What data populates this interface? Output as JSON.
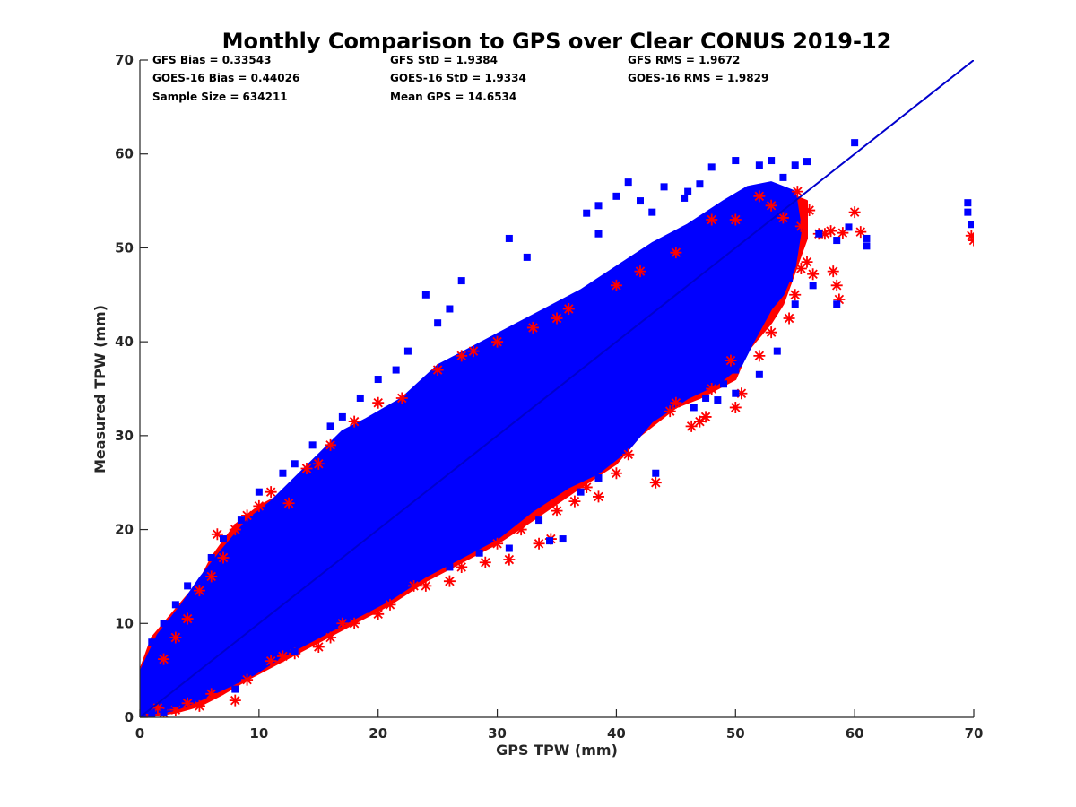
{
  "chart_data": {
    "type": "scatter",
    "title": "Monthly Comparison to GPS over Clear CONUS 2019-12",
    "xlabel": "GPS TPW (mm)",
    "ylabel": "Measured TPW (mm)",
    "xlim": [
      0,
      70
    ],
    "ylim": [
      0,
      70
    ],
    "xticks": [
      "0",
      "10",
      "20",
      "30",
      "40",
      "50",
      "60",
      "70"
    ],
    "yticks": [
      "0",
      "10",
      "20",
      "30",
      "40",
      "50",
      "60",
      "70"
    ],
    "grid": false,
    "series": [
      {
        "name": "GFS",
        "marker": "asterisk",
        "color": "#ff0000"
      },
      {
        "name": "GOES-16",
        "marker": "square",
        "color": "#0000ff"
      }
    ],
    "reference_line": {
      "name": "1:1 line",
      "x": [
        0,
        70
      ],
      "y": [
        0,
        70
      ],
      "color": "#0000cc"
    },
    "stats": [
      [
        "GFS Bias = 0.33543",
        "GFS StD = 1.9384",
        "GFS RMS = 1.9672"
      ],
      [
        "GOES-16 Bias = 0.44026",
        "GOES-16 StD = 1.9334",
        "GOES-16 RMS = 1.9829"
      ],
      [
        "Sample Size = 634211",
        "Mean GPS = 14.6534"
      ]
    ],
    "gfs_outliers": [
      [
        57,
        51.5
      ],
      [
        58,
        51.8
      ],
      [
        59,
        51.6
      ],
      [
        60,
        53.8
      ],
      [
        60.5,
        51.7
      ],
      [
        58.2,
        47.5
      ],
      [
        58.5,
        46
      ],
      [
        58.7,
        44.5
      ],
      [
        69.8,
        51.3
      ],
      [
        70,
        50.8
      ],
      [
        56,
        48.5
      ],
      [
        55,
        45
      ],
      [
        54.5,
        42.5
      ],
      [
        53,
        41
      ],
      [
        52,
        38.5
      ],
      [
        50.5,
        34.5
      ],
      [
        50,
        33
      ],
      [
        47.5,
        32
      ],
      [
        47,
        31.5
      ],
      [
        46.3,
        31
      ],
      [
        43.3,
        25
      ],
      [
        38.5,
        23.5
      ],
      [
        36.5,
        23
      ],
      [
        34.5,
        19
      ],
      [
        33.5,
        18.5
      ],
      [
        31,
        16.8
      ],
      [
        29,
        16.5
      ],
      [
        26,
        14.5
      ],
      [
        23,
        14
      ],
      [
        20,
        11
      ],
      [
        17,
        10
      ],
      [
        15,
        7.5
      ],
      [
        12,
        6.5
      ],
      [
        8,
        1.8
      ],
      [
        5,
        1.2
      ],
      [
        2,
        0.4
      ],
      [
        1,
        0.3
      ],
      [
        5,
        13.5
      ],
      [
        7,
        17
      ],
      [
        8,
        20
      ],
      [
        9,
        21.5
      ],
      [
        10,
        22.5
      ],
      [
        12.5,
        22.8
      ],
      [
        15,
        27
      ],
      [
        16,
        29
      ],
      [
        18,
        31.5
      ],
      [
        20,
        33.5
      ],
      [
        25,
        37
      ],
      [
        27,
        38.5
      ],
      [
        30,
        40
      ],
      [
        33,
        41.5
      ],
      [
        36,
        43.5
      ],
      [
        40,
        46
      ],
      [
        45,
        49.5
      ],
      [
        48,
        53
      ],
      [
        52,
        55.5
      ],
      [
        55.2,
        56
      ],
      [
        56.2,
        54
      ],
      [
        57.5,
        51.5
      ],
      [
        55.5,
        52.3
      ],
      [
        55.5,
        47.8
      ],
      [
        56.5,
        47.2
      ],
      [
        49.6,
        38
      ],
      [
        48,
        35
      ],
      [
        45,
        33.5
      ],
      [
        44.5,
        32.6
      ],
      [
        41,
        28
      ],
      [
        40,
        26
      ],
      [
        37.5,
        24.5
      ],
      [
        35,
        22
      ],
      [
        32,
        20
      ],
      [
        30,
        18.5
      ],
      [
        27,
        16
      ],
      [
        24,
        14
      ],
      [
        21,
        12
      ],
      [
        18,
        10
      ],
      [
        16,
        8.5
      ],
      [
        13,
        6.8
      ],
      [
        11,
        6
      ],
      [
        9,
        4
      ],
      [
        6,
        2.5
      ],
      [
        4,
        1.5
      ],
      [
        3,
        0.8
      ],
      [
        1.5,
        1
      ],
      [
        2,
        6.2
      ],
      [
        3,
        8.5
      ],
      [
        4,
        10.5
      ],
      [
        6,
        15
      ],
      [
        6.5,
        19.5
      ],
      [
        11,
        24
      ],
      [
        14,
        26.5
      ],
      [
        22,
        34
      ],
      [
        28,
        39
      ],
      [
        35,
        42.5
      ],
      [
        42,
        47.5
      ],
      [
        50,
        53
      ],
      [
        53,
        54.5
      ],
      [
        54,
        53.2
      ]
    ],
    "goes_outliers": [
      [
        60,
        61.2
      ],
      [
        56,
        59.2
      ],
      [
        55,
        58.8
      ],
      [
        53,
        59.3
      ],
      [
        52,
        58.8
      ],
      [
        50,
        59.3
      ],
      [
        48,
        58.6
      ],
      [
        44,
        56.5
      ],
      [
        45.7,
        55.3
      ],
      [
        42,
        55
      ],
      [
        38.5,
        54.5
      ],
      [
        41,
        57
      ],
      [
        40,
        55.5
      ],
      [
        43,
        53.8
      ],
      [
        38.5,
        51.5
      ],
      [
        37.5,
        53.7
      ],
      [
        31,
        51
      ],
      [
        32.5,
        49
      ],
      [
        27,
        46.5
      ],
      [
        24,
        45
      ],
      [
        26,
        43.5
      ],
      [
        25,
        42
      ],
      [
        22.5,
        39
      ],
      [
        21.5,
        37
      ],
      [
        20,
        36
      ],
      [
        18.5,
        34
      ],
      [
        17,
        32
      ],
      [
        16,
        31
      ],
      [
        14.5,
        29
      ],
      [
        13,
        27
      ],
      [
        12,
        26
      ],
      [
        10,
        24
      ],
      [
        8.5,
        21
      ],
      [
        7,
        19
      ],
      [
        6,
        17
      ],
      [
        4,
        14
      ],
      [
        3,
        12
      ],
      [
        2,
        10
      ],
      [
        1,
        8
      ],
      [
        69.5,
        54.8
      ],
      [
        69.5,
        53.8
      ],
      [
        69.8,
        52.5
      ],
      [
        61,
        51
      ],
      [
        61,
        50.2
      ],
      [
        59.5,
        52.2
      ],
      [
        58.5,
        50.8
      ],
      [
        58.5,
        44
      ],
      [
        56.5,
        46
      ],
      [
        57,
        51.5
      ],
      [
        54.5,
        46.7
      ],
      [
        55,
        44
      ],
      [
        53.5,
        39
      ],
      [
        52,
        36.5
      ],
      [
        50,
        37
      ],
      [
        49,
        35.5
      ],
      [
        50,
        34.5
      ],
      [
        48.5,
        33.8
      ],
      [
        47.5,
        34
      ],
      [
        46.5,
        33
      ],
      [
        45,
        35.2
      ],
      [
        43.3,
        26
      ],
      [
        38.5,
        25.5
      ],
      [
        37,
        24
      ],
      [
        35.5,
        19
      ],
      [
        33.5,
        21
      ],
      [
        31,
        18
      ],
      [
        29,
        20.5
      ],
      [
        28.5,
        17.5
      ],
      [
        26,
        16
      ],
      [
        25,
        16.5
      ],
      [
        23,
        15
      ],
      [
        22.5,
        17.7
      ],
      [
        20,
        13
      ],
      [
        19,
        11.5
      ],
      [
        16,
        10
      ],
      [
        18,
        14
      ],
      [
        20.5,
        16.5
      ],
      [
        15,
        9.5
      ],
      [
        13,
        7
      ],
      [
        12,
        8
      ],
      [
        10,
        7.5
      ],
      [
        8,
        3
      ],
      [
        7,
        5
      ],
      [
        5,
        3.5
      ],
      [
        3,
        1.5
      ],
      [
        2,
        0.5
      ],
      [
        1,
        0.4
      ],
      [
        34.4,
        18.8
      ],
      [
        40,
        32
      ],
      [
        42,
        33
      ],
      [
        44,
        38
      ],
      [
        54,
        57.5
      ],
      [
        51,
        56
      ],
      [
        46,
        56
      ],
      [
        47,
        56.8
      ]
    ]
  }
}
